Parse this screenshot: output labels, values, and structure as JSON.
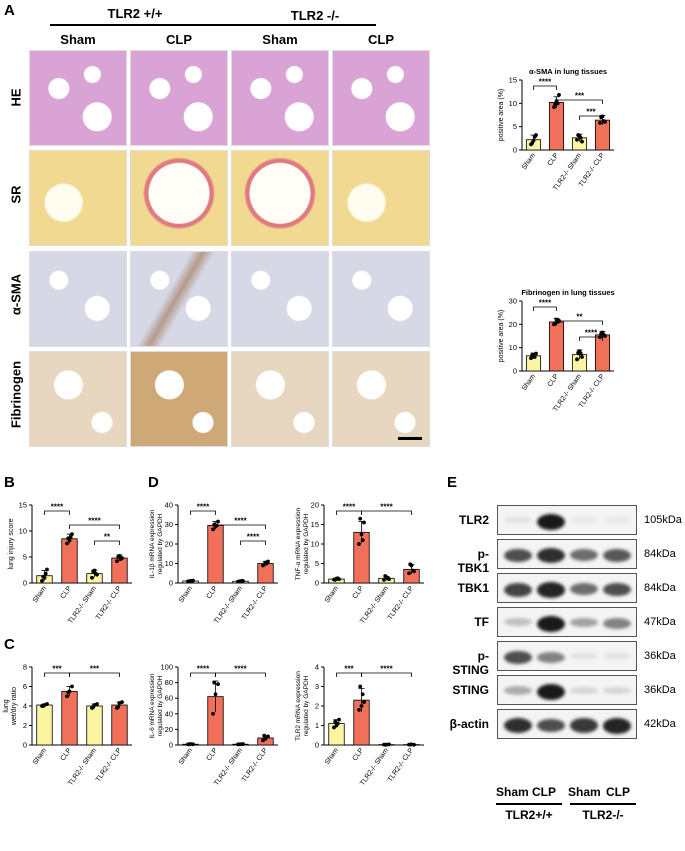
{
  "panel_letters": {
    "a": "A",
    "b": "B",
    "c": "C",
    "d": "D",
    "e": "E"
  },
  "panel_a": {
    "genotype_wt": "TLR2 +/+",
    "genotype_ko": "TLR2 -/-",
    "col_headers": [
      "Sham",
      "CLP",
      "Sham",
      "CLP"
    ],
    "row_labels": [
      "HE",
      "SR",
      "α-SMA",
      "Fibrinogen"
    ],
    "tile_colors": {
      "HE": "#d9a3d6",
      "SR": "#f2d992",
      "α-SMA": "#d6d8e6",
      "Fibrinogen": "#e8d7c0"
    }
  },
  "colors": {
    "sham_bar": "#fbf5a1",
    "clp_bar": "#f0705a",
    "bar_edge": "#000000"
  },
  "chart_data": [
    {
      "id": "asma",
      "type": "bar",
      "title": "α-SMA in lung tissues",
      "ylabel": "positive area (%)",
      "ylim": [
        0,
        15
      ],
      "yticks": [
        0,
        5,
        10,
        15
      ],
      "categories": [
        "Sham",
        "CLP",
        "TLR2-/- Sham",
        "TLR2-/- CLP"
      ],
      "values": [
        2.2,
        10.2,
        2.6,
        6.4
      ],
      "errors": [
        1.0,
        1.2,
        0.8,
        1.0
      ],
      "points": [
        [
          1.2,
          2.0,
          3.2,
          1.5,
          2.8
        ],
        [
          9.2,
          10.5,
          11.8,
          9.8,
          10.0
        ],
        [
          2.2,
          3.0,
          1.8,
          3.2,
          2.6
        ],
        [
          5.8,
          7.2,
          6.0,
          7.0,
          6.2
        ]
      ],
      "sig": [
        {
          "from": 0,
          "to": 1,
          "label": "****",
          "level": 0
        },
        {
          "from": 1,
          "to": 3,
          "label": "***",
          "level": 1
        },
        {
          "from": 2,
          "to": 3,
          "label": "***",
          "level": 0
        }
      ]
    },
    {
      "id": "fib",
      "type": "bar",
      "title": "Fibrinogen in lung tissues",
      "ylabel": "positive area (%)",
      "ylim": [
        0,
        30
      ],
      "yticks": [
        0,
        10,
        20,
        30
      ],
      "categories": [
        "Sham",
        "CLP",
        "TLR2-/- Sham",
        "TLR2-/- CLP"
      ],
      "values": [
        6.5,
        21.0,
        7.0,
        15.5
      ],
      "errors": [
        1.2,
        1.6,
        2.0,
        1.5
      ],
      "points": [
        [
          5.5,
          6.5,
          7.5,
          6.8,
          6.0
        ],
        [
          20.0,
          22.0,
          21.5,
          20.5,
          21.0
        ],
        [
          5.0,
          8.5,
          6.0,
          7.8,
          7.5
        ],
        [
          14.5,
          16.5,
          15.0,
          16.0,
          15.5
        ]
      ],
      "sig": [
        {
          "from": 0,
          "to": 1,
          "label": "****",
          "level": 0
        },
        {
          "from": 1,
          "to": 3,
          "label": "**",
          "level": 1
        },
        {
          "from": 2,
          "to": 3,
          "label": "****",
          "level": 0
        }
      ]
    },
    {
      "id": "injury",
      "type": "bar",
      "title": "",
      "ylabel": "lung injury score",
      "ylim": [
        0,
        15
      ],
      "yticks": [
        0,
        5,
        10,
        15
      ],
      "categories": [
        "Sham",
        "CLP",
        "TLR2-/- Sham",
        "TLR2-/- CLP"
      ],
      "values": [
        1.4,
        8.5,
        1.8,
        4.8
      ],
      "errors": [
        1.0,
        0.9,
        0.7,
        0.6
      ],
      "points": [
        [
          0.4,
          1.0,
          2.6,
          1.2,
          1.8
        ],
        [
          7.6,
          8.2,
          9.4,
          8.6,
          8.8
        ],
        [
          1.0,
          2.4,
          1.6,
          2.2,
          1.8
        ],
        [
          4.2,
          5.2,
          4.8,
          5.0,
          4.6
        ]
      ],
      "sig": [
        {
          "from": 0,
          "to": 1,
          "label": "****",
          "level": 0
        },
        {
          "from": 1,
          "to": 3,
          "label": "****",
          "level": 1
        },
        {
          "from": 2,
          "to": 3,
          "label": "**",
          "level": 0
        }
      ]
    },
    {
      "id": "il1b",
      "type": "bar",
      "title": "",
      "ylabel": "IL-1β mRNA expression regulated by GAPDH",
      "ylim": [
        0,
        40
      ],
      "yticks": [
        0,
        10,
        20,
        30,
        40
      ],
      "categories": [
        "Sham",
        "CLP",
        "TLR2-/- Sham",
        "TLR2-/- CLP"
      ],
      "values": [
        1.0,
        29.5,
        0.9,
        10.0
      ],
      "errors": [
        0.2,
        2.0,
        0.2,
        1.0
      ],
      "points": [
        [
          0.8,
          1.0,
          1.2,
          0.9,
          1.1
        ],
        [
          27.5,
          29.0,
          31.5,
          30.0,
          29.5
        ],
        [
          0.7,
          0.9,
          1.0,
          0.8,
          1.1
        ],
        [
          9.0,
          10.5,
          11.0,
          9.5,
          10.0
        ]
      ],
      "sig": [
        {
          "from": 0,
          "to": 1,
          "label": "****",
          "level": 0
        },
        {
          "from": 1,
          "to": 3,
          "label": "****",
          "level": 1
        },
        {
          "from": 2,
          "to": 3,
          "label": "****",
          "level": 0
        }
      ]
    },
    {
      "id": "tnfa",
      "type": "bar",
      "title": "",
      "ylabel": "TNF-α mRNA expression regulated by GAPDH",
      "ylim": [
        0,
        20
      ],
      "yticks": [
        0,
        5,
        10,
        15,
        20
      ],
      "categories": [
        "Sham",
        "CLP",
        "TLR2-/- Sham",
        "TLR2-/- CLP"
      ],
      "values": [
        1.0,
        13.0,
        1.2,
        3.5
      ],
      "errors": [
        0.2,
        2.8,
        0.5,
        1.2
      ],
      "points": [
        [
          0.9,
          1.1,
          1.0,
          0.8,
          1.2
        ],
        [
          10.0,
          12.5,
          15.5,
          16.5,
          11.0
        ],
        [
          0.8,
          1.5,
          1.0,
          1.8,
          1.2
        ],
        [
          2.5,
          4.5,
          3.0,
          4.8,
          3.2
        ]
      ],
      "sig": [
        {
          "from": 0,
          "to": 1,
          "label": "****",
          "level": 0
        },
        {
          "from": 1,
          "to": 3,
          "label": "****",
          "level": 0
        }
      ]
    },
    {
      "id": "wetdry",
      "type": "bar",
      "title": "",
      "ylabel": "lung wet/dry ratio",
      "ylim": [
        0,
        8
      ],
      "yticks": [
        0,
        2,
        4,
        6,
        8
      ],
      "categories": [
        "Sham",
        "CLP",
        "TLR2-/- Sham",
        "TLR2-/- CLP"
      ],
      "values": [
        4.1,
        5.5,
        4.0,
        4.1
      ],
      "errors": [
        0.1,
        0.5,
        0.2,
        0.3
      ],
      "points": [
        [
          4.0,
          4.1,
          4.2,
          4.0
        ],
        [
          5.0,
          5.5,
          6.0,
          5.4
        ],
        [
          3.8,
          4.1,
          4.2,
          3.9
        ],
        [
          3.8,
          4.3,
          4.4,
          3.9
        ]
      ],
      "sig": [
        {
          "from": 0,
          "to": 1,
          "label": "***",
          "level": 0
        },
        {
          "from": 1,
          "to": 3,
          "label": "***",
          "level": 0
        }
      ]
    },
    {
      "id": "il6",
      "type": "bar",
      "title": "",
      "ylabel": "IL-6 mRNA expression regulated by GAPDH",
      "ylim": [
        0,
        100
      ],
      "yticks": [
        0,
        20,
        40,
        60,
        80,
        100
      ],
      "categories": [
        "Sham",
        "CLP",
        "TLR2-/- Sham",
        "TLR2-/- CLP"
      ],
      "values": [
        1.0,
        62.0,
        1.0,
        9.0
      ],
      "errors": [
        0.5,
        20.0,
        0.5,
        3.0
      ],
      "points": [
        [
          0.8,
          1.2,
          1.0,
          0.9
        ],
        [
          40.0,
          65.0,
          78.0,
          80.0
        ],
        [
          0.8,
          1.0,
          1.2,
          0.9
        ],
        [
          6.0,
          8.0,
          11.0,
          12.0
        ]
      ],
      "sig": [
        {
          "from": 0,
          "to": 1,
          "label": "****",
          "level": 0
        },
        {
          "from": 1,
          "to": 3,
          "label": "****",
          "level": 0
        }
      ]
    },
    {
      "id": "tlr2",
      "type": "bar",
      "title": "",
      "ylabel": "TLR2 mRNA expression regulated by GAPDH",
      "ylim": [
        0,
        4
      ],
      "yticks": [
        0,
        1,
        2,
        3,
        4
      ],
      "categories": [
        "Sham",
        "CLP",
        "TLR2-/- Sham",
        "TLR2-/- CLP"
      ],
      "values": [
        1.1,
        2.3,
        0.02,
        0.02
      ],
      "errors": [
        0.2,
        0.6,
        0.01,
        0.01
      ],
      "points": [
        [
          0.9,
          1.0,
          1.3,
          1.2,
          1.1
        ],
        [
          1.8,
          2.0,
          2.2,
          3.0,
          2.6
        ],
        [
          0.02,
          0.02,
          0.03,
          0.01
        ],
        [
          0.02,
          0.03,
          0.01,
          0.02
        ]
      ],
      "sig": [
        {
          "from": 0,
          "to": 1,
          "label": "***",
          "level": 0
        },
        {
          "from": 1,
          "to": 3,
          "label": "****",
          "level": 0
        }
      ]
    }
  ],
  "panel_e": {
    "rows": [
      {
        "label": "TLR2",
        "kda": "105kDa"
      },
      {
        "label": "p-TBK1",
        "kda": "84kDa"
      },
      {
        "label": "TBK1",
        "kda": "84kDa"
      },
      {
        "label": "TF",
        "kda": "47kDa"
      },
      {
        "label": "p-STING",
        "kda": "36kDa"
      },
      {
        "label": "STING",
        "kda": "36kDa"
      },
      {
        "label": "β-actin",
        "kda": "42kDa"
      }
    ],
    "lanes": [
      "Sham",
      "CLP",
      "Sham",
      "CLP"
    ],
    "groups": [
      "TLR2+/+",
      "TLR2-/-"
    ],
    "band_intensity": [
      [
        0.05,
        1.0,
        0.02,
        0.02
      ],
      [
        0.75,
        0.9,
        0.6,
        0.7
      ],
      [
        0.8,
        0.95,
        0.6,
        0.75
      ],
      [
        0.2,
        1.0,
        0.35,
        0.5
      ],
      [
        0.75,
        0.5,
        0.05,
        0.05
      ],
      [
        0.3,
        1.0,
        0.1,
        0.1
      ],
      [
        0.9,
        0.75,
        0.85,
        0.95
      ]
    ]
  }
}
